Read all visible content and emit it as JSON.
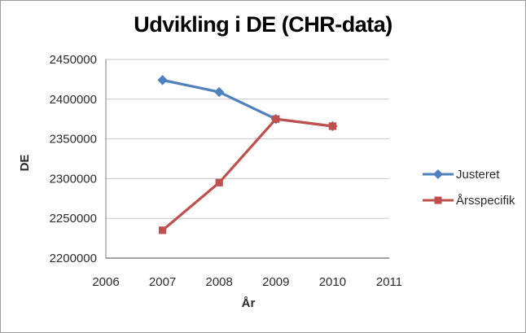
{
  "chart_data": {
    "type": "line",
    "title": "Udvikling i DE (CHR-data)",
    "xlabel": "År",
    "ylabel": "DE",
    "x": [
      2007,
      2008,
      2009,
      2010
    ],
    "x_ticks": [
      2006,
      2007,
      2008,
      2009,
      2010,
      2011
    ],
    "xlim": [
      2006,
      2011
    ],
    "y_ticks": [
      2450000,
      2400000,
      2350000,
      2300000,
      2250000,
      2200000
    ],
    "ylim": [
      2200000,
      2450000
    ],
    "y_tick_step": 50000,
    "grid": true,
    "legend_position": "right",
    "series": [
      {
        "name": "Justeret",
        "color": "#4F81BD",
        "marker": "diamond",
        "values": [
          2424000,
          2409000,
          2375000,
          2366000
        ]
      },
      {
        "name": "Årsspecifik",
        "color": "#C0504D",
        "marker": "square",
        "values": [
          2235000,
          2295000,
          2375000,
          2366000
        ]
      }
    ]
  },
  "colors": {
    "background": "#FFFFFF",
    "frame_border": "#9C9C9C",
    "gridline": "#C6C6C6",
    "axis": "#969696",
    "tick_text": "#2B2B2B",
    "title_text": "#000000"
  }
}
